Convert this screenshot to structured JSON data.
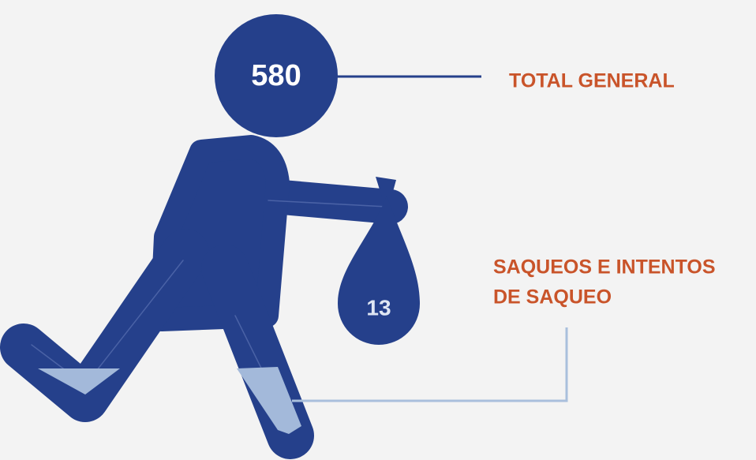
{
  "total": {
    "value": 580,
    "label": "TOTAL GENERAL"
  },
  "looting": {
    "value": 13,
    "label_lines": [
      "SAQUEOS E INTENTOS",
      "DE SAQUEO"
    ]
  }
}
